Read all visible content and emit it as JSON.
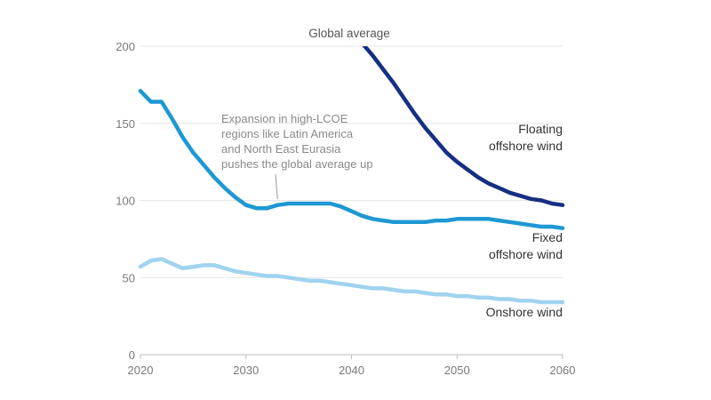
{
  "chart_data": {
    "type": "line",
    "title": "",
    "subtitle": "Global average",
    "xlabel": "",
    "ylabel": "",
    "xlim": [
      2020,
      2060
    ],
    "ylim": [
      0,
      200
    ],
    "x_ticks": [
      "2020",
      "2030",
      "2040",
      "2050",
      "2060"
    ],
    "y_ticks": [
      "0",
      "50",
      "100",
      "150",
      "200"
    ],
    "grid": "horizontal",
    "annotation": {
      "lines": [
        "Expansion in high-LCOE",
        "regions like Latin America",
        "and North East Eurasia",
        "pushes the global average up"
      ],
      "points_to": {
        "x": 2033.5,
        "y": 98
      }
    },
    "series": [
      {
        "name": "Floating offshore wind",
        "label_lines": [
          "Floating",
          "offshore wind"
        ],
        "color": "#152f84",
        "x": [
          2041,
          2042,
          2043,
          2044,
          2045,
          2046,
          2047,
          2048,
          2049,
          2050,
          2051,
          2052,
          2053,
          2054,
          2055,
          2056,
          2057,
          2058,
          2059,
          2060
        ],
        "values": [
          202,
          194,
          185,
          176,
          166,
          156,
          147,
          139,
          131,
          125,
          120,
          115,
          111,
          108,
          105,
          103,
          101,
          100,
          98,
          97
        ]
      },
      {
        "name": "Fixed offshore wind",
        "label_lines": [
          "Fixed",
          "offshore wind"
        ],
        "color": "#1e98d3",
        "x": [
          2020,
          2021,
          2022,
          2023,
          2024,
          2025,
          2026,
          2027,
          2028,
          2029,
          2030,
          2031,
          2032,
          2033,
          2034,
          2035,
          2036,
          2037,
          2038,
          2039,
          2040,
          2041,
          2042,
          2043,
          2044,
          2045,
          2046,
          2047,
          2048,
          2049,
          2050,
          2051,
          2052,
          2053,
          2054,
          2055,
          2056,
          2057,
          2058,
          2059,
          2060
        ],
        "values": [
          171,
          164,
          164,
          153,
          141,
          131,
          123,
          115,
          108,
          102,
          97,
          95,
          95,
          97,
          98,
          98,
          98,
          98,
          98,
          96,
          93,
          90,
          88,
          87,
          86,
          86,
          86,
          86,
          87,
          87,
          88,
          88,
          88,
          88,
          87,
          86,
          85,
          84,
          83,
          83,
          82
        ]
      },
      {
        "name": "Onshore wind",
        "label_lines": [
          "Onshore wind"
        ],
        "color": "#9fd3ef",
        "x": [
          2020,
          2021,
          2022,
          2023,
          2024,
          2025,
          2026,
          2027,
          2028,
          2029,
          2030,
          2031,
          2032,
          2033,
          2034,
          2035,
          2036,
          2037,
          2038,
          2039,
          2040,
          2041,
          2042,
          2043,
          2044,
          2045,
          2046,
          2047,
          2048,
          2049,
          2050,
          2051,
          2052,
          2053,
          2054,
          2055,
          2056,
          2057,
          2058,
          2059,
          2060
        ],
        "values": [
          57,
          61,
          62,
          59,
          56,
          57,
          58,
          58,
          56,
          54,
          53,
          52,
          51,
          51,
          50,
          49,
          48,
          48,
          47,
          46,
          45,
          44,
          43,
          43,
          42,
          41,
          41,
          40,
          39,
          39,
          38,
          38,
          37,
          37,
          36,
          36,
          35,
          35,
          34,
          34,
          34
        ]
      }
    ]
  }
}
